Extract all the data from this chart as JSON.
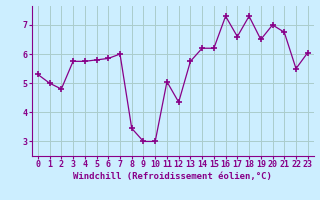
{
  "x": [
    0,
    1,
    2,
    3,
    4,
    5,
    6,
    7,
    8,
    9,
    10,
    11,
    12,
    13,
    14,
    15,
    16,
    17,
    18,
    19,
    20,
    21,
    22,
    23
  ],
  "y": [
    5.3,
    5.0,
    4.8,
    5.75,
    5.75,
    5.8,
    5.85,
    6.0,
    3.45,
    3.0,
    3.0,
    5.05,
    4.35,
    5.75,
    6.2,
    6.2,
    7.3,
    6.6,
    7.3,
    6.5,
    7.0,
    6.75,
    5.5,
    6.05
  ],
  "line_color": "#880088",
  "marker": "+",
  "marker_size": 4,
  "marker_lw": 1.2,
  "bg_color": "#cceeff",
  "grid_color": "#aacccc",
  "xlabel": "Windchill (Refroidissement éolien,°C)",
  "xlabel_fontsize": 6.5,
  "tick_fontsize": 6,
  "tick_color": "#880088",
  "label_color": "#880088",
  "xlim": [
    -0.5,
    23.5
  ],
  "ylim": [
    2.5,
    7.65
  ],
  "yticks": [
    3,
    4,
    5,
    6,
    7
  ],
  "xticks": [
    0,
    1,
    2,
    3,
    4,
    5,
    6,
    7,
    8,
    9,
    10,
    11,
    12,
    13,
    14,
    15,
    16,
    17,
    18,
    19,
    20,
    21,
    22,
    23
  ]
}
